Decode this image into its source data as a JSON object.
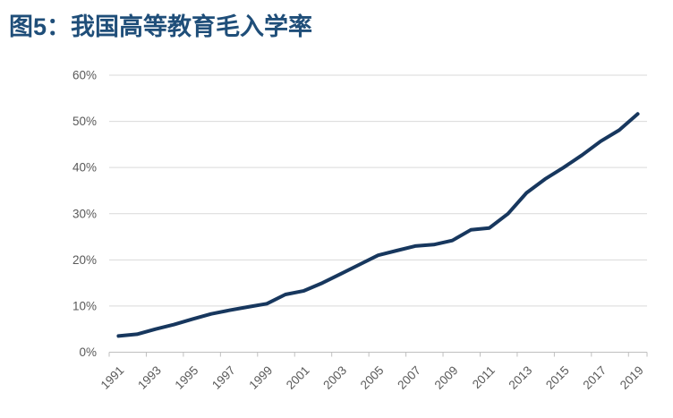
{
  "header": {
    "title": "图5：我国高等教育毛入学率"
  },
  "chart_data": {
    "type": "line",
    "title": "图5：我国高等教育毛入学率",
    "x": [
      1991,
      1992,
      1993,
      1994,
      1995,
      1996,
      1997,
      1998,
      1999,
      2000,
      2001,
      2002,
      2003,
      2004,
      2005,
      2006,
      2007,
      2008,
      2009,
      2010,
      2011,
      2012,
      2013,
      2014,
      2015,
      2016,
      2017,
      2018,
      2019
    ],
    "values": [
      3.5,
      3.9,
      5.0,
      6.0,
      7.2,
      8.3,
      9.1,
      9.8,
      10.5,
      12.5,
      13.3,
      15.0,
      17.0,
      19.0,
      21.0,
      22.0,
      23.0,
      23.3,
      24.2,
      26.5,
      26.9,
      30.0,
      34.5,
      37.5,
      40.0,
      42.7,
      45.7,
      48.1,
      51.6
    ],
    "xlabel": "",
    "ylabel": "",
    "ylim": [
      0,
      60
    ],
    "yticks": [
      0,
      10,
      20,
      30,
      40,
      50,
      60
    ],
    "ytick_labels": [
      "0%",
      "10%",
      "20%",
      "30%",
      "40%",
      "50%",
      "60%"
    ],
    "xtick_labels": [
      "1991",
      "1993",
      "1995",
      "1997",
      "1999",
      "2001",
      "2003",
      "2005",
      "2007",
      "2009",
      "2011",
      "2013",
      "2015",
      "2017",
      "2019"
    ],
    "grid": "horizontal",
    "legend": "none",
    "colors": {
      "line": "#17375E",
      "title": "#1F4E79",
      "gridline": "#D9D9D9",
      "axis": "#BFBFBF",
      "tick_label": "#595959",
      "background": "#FFFFFF"
    }
  }
}
